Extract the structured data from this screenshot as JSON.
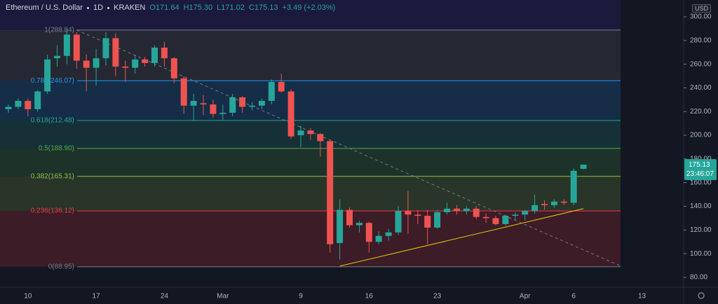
{
  "header": {
    "symbol": "Ethereum / U.S. Dollar",
    "interval": "1D",
    "exchange": "KRAKEN",
    "open": "O171.64",
    "high": "H175.30",
    "low": "L171.02",
    "close": "C175.13",
    "change": "+3.49 (+2.03%)"
  },
  "chart_data": {
    "type": "candlestick",
    "currency": "USD",
    "categories": [
      null,
      null,
      "10",
      null,
      null,
      null,
      null,
      null,
      null,
      "17",
      null,
      null,
      null,
      null,
      null,
      null,
      "24",
      null,
      null,
      null,
      null,
      null,
      "Mar",
      null,
      null,
      null,
      null,
      null,
      null,
      null,
      "9",
      null,
      null,
      null,
      null,
      null,
      null,
      "16",
      null,
      null,
      null,
      null,
      null,
      null,
      "23",
      null,
      null,
      null,
      null,
      null,
      null,
      null,
      null,
      "Apr",
      null,
      null,
      null,
      null,
      "6",
      null,
      null,
      null,
      null,
      null,
      null,
      "13"
    ],
    "open": [
      222,
      224,
      229,
      222,
      237,
      265,
      267,
      285,
      263,
      257,
      265,
      282,
      258,
      257,
      264,
      261,
      274,
      265,
      248,
      225,
      227,
      226,
      218,
      219,
      232,
      224,
      225,
      229,
      245,
      237,
      200,
      204,
      201,
      195,
      109,
      137,
      124,
      126,
      110,
      115,
      118,
      136,
      133,
      132,
      122,
      135,
      138,
      136,
      138,
      131,
      130,
      125,
      132,
      133,
      136,
      142,
      141,
      144,
      143,
      171.64,
      null,
      null,
      null,
      null,
      null,
      null
    ],
    "high": [
      226,
      231,
      231,
      238,
      268,
      276,
      290,
      287,
      268,
      273,
      287,
      286,
      263,
      268,
      266,
      276,
      279,
      266,
      250,
      235,
      234,
      230,
      226,
      235,
      233,
      228,
      231,
      247,
      252,
      239,
      208,
      206,
      202,
      196,
      146,
      139,
      128,
      127,
      119,
      121,
      140,
      153,
      137,
      137,
      137,
      143,
      141,
      140,
      140,
      134,
      132,
      133,
      135,
      137,
      150,
      145,
      146,
      146,
      172,
      175.3,
      null,
      null,
      null,
      null,
      null,
      null
    ],
    "low": [
      219,
      222,
      216,
      220,
      235,
      258,
      260,
      256,
      237,
      242,
      259,
      250,
      245,
      252,
      258,
      258,
      258,
      244,
      218,
      212,
      217,
      215,
      213,
      216,
      219,
      221,
      222,
      226,
      236,
      197,
      190,
      196,
      182,
      101,
      95,
      122,
      118,
      101,
      108,
      111,
      116,
      117,
      125,
      108,
      121,
      133,
      133,
      133,
      129,
      126,
      124,
      124,
      128,
      128,
      134,
      137,
      139,
      141,
      141,
      171.02,
      null,
      null,
      null,
      null,
      null,
      null
    ],
    "close": [
      224,
      229,
      222,
      237,
      264,
      267,
      285,
      263,
      257,
      265,
      282,
      258,
      257,
      264,
      261,
      274,
      265,
      248,
      225,
      229,
      226,
      218,
      219,
      232,
      224,
      225,
      229,
      245,
      237,
      199,
      204,
      201,
      195,
      108,
      137,
      124,
      126,
      110,
      115,
      118,
      136,
      133,
      132,
      122,
      135,
      138,
      136,
      138,
      131,
      130,
      125,
      132,
      133,
      136,
      141,
      141,
      144,
      143,
      170,
      175.13,
      null,
      null,
      null,
      null,
      null,
      null
    ],
    "up_color": "#26a69a",
    "down_color": "#ef5350",
    "ylim": [
      71.7,
      314.2
    ],
    "yticks": [
      {
        "value": 80,
        "label": "80.00"
      },
      {
        "value": 100,
        "label": "100.00"
      },
      {
        "value": 120,
        "label": "120.00"
      },
      {
        "value": 140,
        "label": "140.00"
      },
      {
        "value": 160,
        "label": "160.00"
      },
      {
        "value": 180,
        "label": "180.00"
      },
      {
        "value": 200,
        "label": "200.00"
      },
      {
        "value": 220,
        "label": "220.00"
      },
      {
        "value": 240,
        "label": "240.00"
      },
      {
        "value": 260,
        "label": "260.00"
      },
      {
        "value": 280,
        "label": "280.00"
      },
      {
        "value": 300,
        "label": "300.00"
      }
    ],
    "fib_levels": [
      {
        "value": 288.84,
        "label": "1(288.84)",
        "color": "#787b86"
      },
      {
        "value": 246.07,
        "label": "0.786(246.07)",
        "color": "#2196f3"
      },
      {
        "value": 212.48,
        "label": "0.618(212.48)",
        "color": "#26a69a"
      },
      {
        "value": 188.9,
        "label": "0.5(188.90)",
        "color": "#4caf50"
      },
      {
        "value": 165.31,
        "label": "0.382(165.31)",
        "color": "#8bc34a"
      },
      {
        "value": 136.12,
        "label": "0.236(136.12)",
        "color": "#f23645"
      },
      {
        "value": 88.95,
        "label": "0(88.95)",
        "color": "#787b86"
      }
    ],
    "trendlines": [
      {
        "start": [
          7,
          288.84
        ],
        "end": [
          63,
          88.95
        ],
        "color": "#787b86",
        "dashed": true
      },
      {
        "start": [
          34,
          89.5
        ],
        "end": [
          59,
          138
        ],
        "color": "#f0c808",
        "dashed": false
      }
    ],
    "last_price": {
      "value": 175.13,
      "countdown": "23:46:07"
    }
  }
}
